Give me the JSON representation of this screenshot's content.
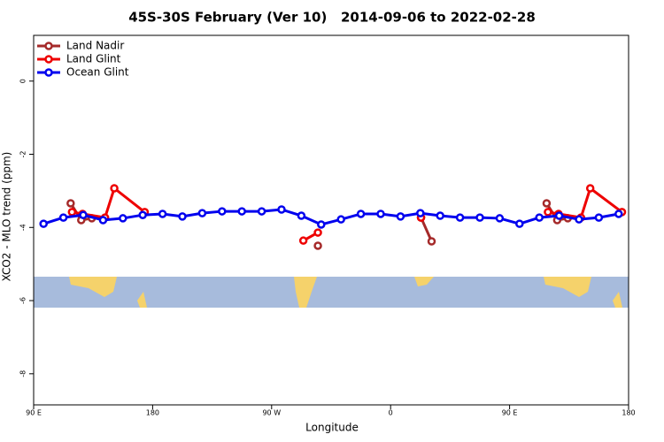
{
  "chart_data": {
    "type": "line",
    "title": "45S-30S February (Ver 10)   2014-09-06 to 2022-02-28",
    "x_label": "Longitude",
    "y_label": "XCO2 - MLO trend (ppm)",
    "xlim": [
      90,
      540
    ],
    "ylim": [
      -8.85,
      1.25
    ],
    "xticks": [
      {
        "value": 90,
        "label": "90 E"
      },
      180,
      {
        "value": 270,
        "label": "90 W"
      },
      {
        "value": 360,
        "label": "0"
      },
      {
        "value": 450,
        "label": "90 E"
      },
      {
        "value": 540,
        "label": "180"
      }
    ],
    "yticks": [
      0,
      -2,
      -4,
      -6,
      -8
    ],
    "legend": "top-left",
    "series": [
      {
        "name": "Land Nadir",
        "color": "#a52a2a",
        "x": [
          118,
          126,
          134,
          null,
          305,
          null,
          383,
          391,
          null,
          478,
          486,
          494
        ],
        "values": [
          -3.34,
          -3.8,
          -3.75,
          null,
          -4.5,
          null,
          -3.73,
          -4.38,
          null,
          -3.34,
          -3.8,
          -3.75
        ]
      },
      {
        "name": "Land Glint",
        "color": "#ee0000",
        "x": [
          119,
          127,
          144,
          151,
          174,
          null,
          294,
          305,
          null,
          383,
          null,
          479,
          487,
          504,
          511,
          535
        ],
        "values": [
          -3.58,
          -3.63,
          -3.73,
          -2.93,
          -3.58,
          null,
          -4.36,
          -4.14,
          null,
          -3.73,
          null,
          -3.58,
          -3.63,
          -3.73,
          -2.93,
          -3.58
        ]
      },
      {
        "name": "Ocean Glint",
        "color": "#0000ee",
        "x": [
          97.5,
          112.5,
          127.5,
          142.5,
          157.5,
          172.5,
          187.5,
          202.5,
          217.5,
          232.5,
          247.5,
          262.5,
          277.5,
          292.5,
          307.5,
          322.5,
          337.5,
          352.5,
          367.5,
          382.5,
          397.5,
          412.5,
          427.5,
          442.5,
          457.5,
          472.5,
          487.5,
          502.5,
          517.5,
          532.5
        ],
        "values": [
          -3.9,
          -3.73,
          -3.66,
          -3.8,
          -3.75,
          -3.66,
          -3.63,
          -3.7,
          -3.61,
          -3.56,
          -3.56,
          -3.56,
          -3.51,
          -3.68,
          -3.92,
          -3.78,
          -3.63,
          -3.63,
          -3.7,
          -3.61,
          -3.68,
          -3.73,
          -3.73,
          -3.75,
          -3.9,
          -3.73,
          -3.68,
          -3.78,
          -3.73,
          -3.63
        ]
      }
    ]
  }
}
